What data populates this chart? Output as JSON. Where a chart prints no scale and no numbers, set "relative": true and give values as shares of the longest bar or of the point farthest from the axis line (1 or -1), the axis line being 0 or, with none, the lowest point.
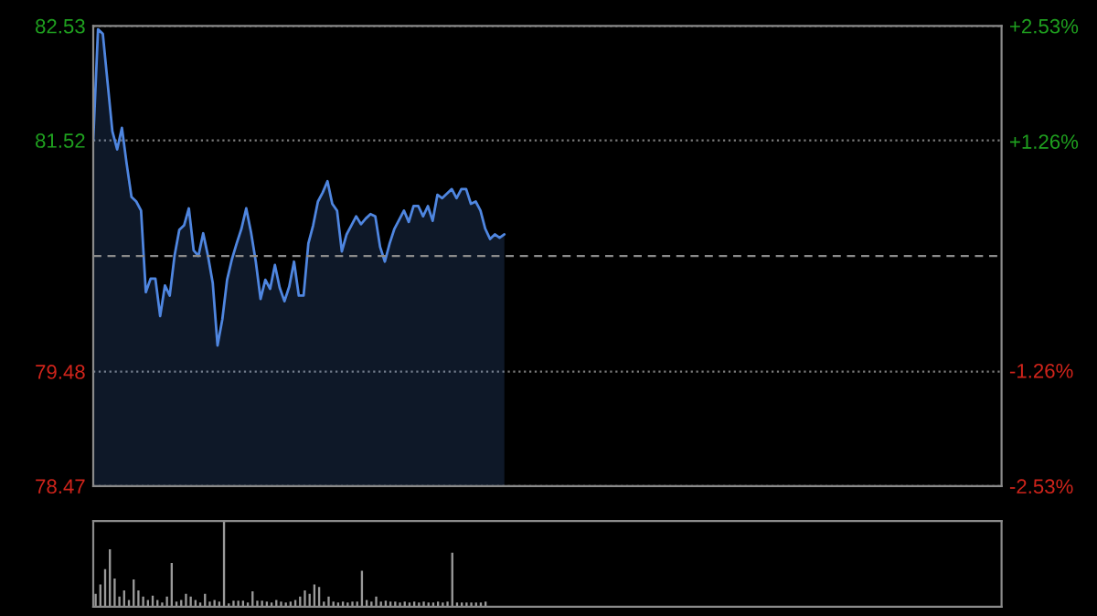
{
  "chart_data": [
    {
      "type": "area",
      "categories": [
        null,
        null,
        null,
        null,
        null,
        null,
        null,
        null,
        null,
        null,
        null,
        null,
        null,
        null,
        null,
        null,
        null,
        null,
        null,
        null,
        null,
        null,
        null,
        null,
        null,
        null,
        null,
        null,
        null,
        null,
        null,
        null,
        null,
        null,
        null,
        null,
        null,
        null,
        null,
        null,
        null,
        null,
        null,
        null,
        null,
        null,
        null,
        null,
        null,
        null,
        null,
        null,
        null,
        null,
        null,
        null,
        null,
        null,
        null,
        null,
        null,
        null,
        null,
        null,
        null,
        null,
        null,
        null,
        null,
        null,
        null,
        null,
        null,
        null,
        null,
        null,
        null,
        null,
        null,
        null,
        null,
        null,
        null,
        null,
        null,
        null,
        null,
        null,
        null,
        null,
        null,
        null,
        null,
        null,
        null,
        null,
        null,
        null,
        null,
        null,
        null,
        null,
        null,
        null,
        null,
        null,
        null,
        null,
        null,
        null,
        null,
        null,
        null,
        null,
        null,
        null,
        null,
        null,
        null,
        null,
        null,
        null,
        null,
        null,
        null,
        null,
        null,
        null,
        null,
        null,
        null,
        null,
        null,
        null,
        null,
        null,
        null,
        null,
        null,
        null,
        null,
        null,
        null,
        null,
        null,
        null,
        null,
        null,
        null,
        null,
        null,
        null,
        null,
        null,
        null,
        null,
        null,
        null,
        null,
        null,
        null,
        null,
        null,
        null,
        null,
        null,
        null,
        null,
        null,
        null,
        null,
        null,
        null,
        null,
        null,
        null,
        null,
        null,
        null,
        null,
        null,
        null,
        null,
        null,
        null,
        null,
        null,
        null,
        null,
        null,
        null
      ],
      "series": [
        {
          "color": "#4f86e0",
          "values": [
            81.52,
            82.5,
            82.46,
            82.03,
            81.6,
            81.44,
            81.63,
            81.31,
            81.02,
            80.98,
            80.9,
            80.18,
            80.3,
            80.3,
            79.97,
            80.24,
            80.15,
            80.5,
            80.73,
            80.77,
            80.92,
            80.55,
            80.5,
            80.7,
            80.5,
            80.26,
            79.71,
            79.94,
            80.29,
            80.47,
            80.61,
            80.74,
            80.92,
            80.71,
            80.45,
            80.12,
            80.29,
            80.21,
            80.42,
            80.22,
            80.1,
            80.23,
            80.45,
            80.15,
            80.15,
            80.61,
            80.77,
            80.98,
            81.06,
            81.16,
            80.96,
            80.9,
            80.54,
            80.69,
            80.77,
            80.85,
            80.78,
            80.83,
            80.87,
            80.85,
            80.58,
            80.45,
            80.61,
            80.74,
            80.82,
            80.9,
            80.8,
            80.94,
            80.94,
            80.85,
            80.94,
            80.81,
            81.04,
            81.01,
            81.05,
            81.09,
            81.01,
            81.09,
            81.09,
            80.96,
            80.98,
            80.9,
            80.74,
            80.65,
            80.69,
            80.66,
            80.69,
            null,
            null,
            null,
            null,
            null,
            null,
            null,
            null,
            null,
            null,
            null,
            null,
            null,
            null,
            null,
            null,
            null,
            null,
            null,
            null,
            null,
            null,
            null,
            null,
            null,
            null,
            null,
            null,
            null,
            null,
            null,
            null,
            null,
            null,
            null,
            null,
            null,
            null,
            null,
            null,
            null,
            null,
            null,
            null,
            null,
            null,
            null,
            null,
            null,
            null,
            null,
            null,
            null,
            null,
            null,
            null,
            null,
            null,
            null,
            null,
            null,
            null,
            null,
            null,
            null,
            null,
            null,
            null,
            null,
            null,
            null,
            null,
            null,
            null,
            null,
            null,
            null,
            null,
            null,
            null,
            null,
            null,
            null,
            null,
            null,
            null,
            null,
            null,
            null,
            null,
            null,
            null,
            null,
            null,
            null,
            null,
            null,
            null,
            null,
            null,
            null,
            null,
            null,
            null
          ]
        }
      ],
      "ylim": [
        78.47,
        82.53
      ],
      "yticks": [
        78.47,
        79.48,
        81.52,
        82.53
      ],
      "y2lim": [
        -2.53,
        2.53
      ],
      "y2ticks": [
        {
          "value": -2.53,
          "label": "-2.53%"
        },
        {
          "value": -1.26,
          "label": "-1.26%"
        },
        {
          "value": 1.26,
          "label": "+1.26%"
        },
        {
          "value": 2.53,
          "label": "+2.53%"
        }
      ],
      "ref_lines": [
        {
          "axis": "y",
          "value": 80.5,
          "color": "#8a8a8a",
          "line_style": "dashed"
        }
      ],
      "grid": "y",
      "tick_labels": "y",
      "legend": false
    },
    {
      "type": "bar",
      "relative": true,
      "categories": [
        null,
        null,
        null,
        null,
        null,
        null,
        null,
        null,
        null,
        null,
        null,
        null,
        null,
        null,
        null,
        null,
        null,
        null,
        null,
        null,
        null,
        null,
        null,
        null,
        null,
        null,
        null,
        null,
        null,
        null,
        null,
        null,
        null,
        null,
        null,
        null,
        null,
        null,
        null,
        null,
        null,
        null,
        null,
        null,
        null,
        null,
        null,
        null,
        null,
        null,
        null,
        null,
        null,
        null,
        null,
        null,
        null,
        null,
        null,
        null,
        null,
        null,
        null,
        null,
        null,
        null,
        null,
        null,
        null,
        null,
        null,
        null,
        null,
        null,
        null,
        null,
        null,
        null,
        null,
        null,
        null,
        null,
        null,
        null,
        null,
        null,
        null,
        null,
        null,
        null,
        null,
        null,
        null,
        null,
        null,
        null,
        null,
        null,
        null,
        null,
        null,
        null,
        null,
        null,
        null,
        null,
        null,
        null,
        null,
        null,
        null,
        null,
        null,
        null,
        null,
        null,
        null,
        null,
        null,
        null,
        null,
        null,
        null,
        null,
        null,
        null,
        null,
        null,
        null,
        null,
        null,
        null,
        null,
        null,
        null,
        null,
        null,
        null,
        null,
        null,
        null,
        null,
        null,
        null,
        null,
        null,
        null,
        null,
        null,
        null,
        null,
        null,
        null,
        null,
        null,
        null,
        null,
        null,
        null,
        null,
        null,
        null,
        null,
        null,
        null,
        null,
        null,
        null,
        null,
        null,
        null,
        null,
        null,
        null,
        null,
        null,
        null,
        null,
        null,
        null,
        null,
        null,
        null,
        null,
        null,
        null,
        null,
        null,
        null,
        null,
        null
      ],
      "series": [
        {
          "color": "#9a9a9a",
          "values": [
            0.15,
            0.26,
            0.44,
            0.67,
            0.33,
            0.12,
            0.19,
            0.08,
            0.32,
            0.19,
            0.12,
            0.08,
            0.13,
            0.08,
            0.05,
            0.12,
            0.51,
            0.06,
            0.08,
            0.15,
            0.12,
            0.08,
            0.05,
            0.15,
            0.06,
            0.08,
            0.06,
            1.0,
            0.04,
            0.07,
            0.07,
            0.07,
            0.05,
            0.18,
            0.07,
            0.07,
            0.06,
            0.05,
            0.08,
            0.06,
            0.05,
            0.06,
            0.08,
            0.12,
            0.19,
            0.15,
            0.26,
            0.23,
            0.06,
            0.12,
            0.06,
            0.05,
            0.06,
            0.05,
            0.06,
            0.06,
            0.42,
            0.08,
            0.06,
            0.12,
            0.06,
            0.07,
            0.06,
            0.06,
            0.05,
            0.06,
            0.05,
            0.06,
            0.05,
            0.06,
            0.05,
            0.05,
            0.06,
            0.05,
            0.06,
            0.63,
            0.05,
            0.05,
            0.05,
            0.05,
            0.05,
            0.05,
            0.06,
            null,
            null,
            null,
            null,
            null,
            null,
            null,
            null,
            null,
            null,
            null,
            null,
            null,
            null,
            null,
            null,
            null,
            null,
            null,
            null,
            null,
            null,
            null,
            null,
            null,
            null,
            null,
            null,
            null,
            null,
            null,
            null,
            null,
            null,
            null,
            null,
            null,
            null,
            null,
            null,
            null,
            null,
            null,
            null,
            null,
            null,
            null,
            null,
            null,
            null,
            null,
            null,
            null,
            null,
            null,
            null,
            null,
            null,
            null,
            null,
            null,
            null,
            null,
            null,
            null,
            null,
            null,
            null,
            null,
            null,
            null,
            null,
            null,
            null,
            null,
            null,
            null,
            null,
            null,
            null,
            null,
            null,
            null,
            null,
            null,
            null,
            null,
            null,
            null,
            null,
            null,
            null,
            null,
            null,
            null,
            null,
            null,
            null,
            null,
            null,
            null,
            null,
            null,
            null,
            null,
            null,
            null,
            null
          ]
        }
      ],
      "tick_labels": false,
      "legend": false
    }
  ]
}
